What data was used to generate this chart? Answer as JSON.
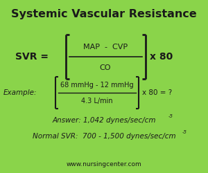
{
  "bg_color": "#8ad44a",
  "title": "Systemic Vascular Resistance",
  "title_fontsize": 11.5,
  "title_fontweight": "bold",
  "text_color": "#1a1a1a",
  "formula_numerator": "MAP  -  CVP",
  "formula_denominator": "CO",
  "example_numerator": "68 mmHg - 12 mmHg",
  "example_denominator": "4.3 L/min",
  "answer_text": "Answer: 1,042 dynes/sec/cm",
  "answer_sup": "-5",
  "normal_text": "Normal SVR:  700 - 1,500 dynes/sec/cm",
  "normal_sup": "-5",
  "website": "www.nursingcenter.com",
  "website_fontsize": 6.5
}
